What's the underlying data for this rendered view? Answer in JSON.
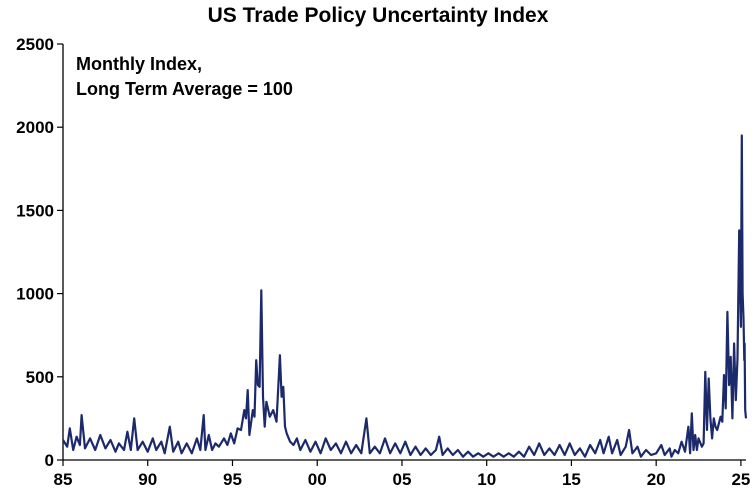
{
  "chart_data": {
    "type": "line",
    "title": "US Trade Policy Uncertainty Index",
    "annotation_lines": [
      "Monthly Index,",
      "Long Term Average = 100"
    ],
    "xlabel": "",
    "ylabel": "",
    "xlim": [
      1985,
      2025.3
    ],
    "ylim": [
      0,
      2500
    ],
    "grid": false,
    "legend": "none",
    "line_color": "#1c2a6b",
    "x_ticks": [
      {
        "value": 1985,
        "label": "85"
      },
      {
        "value": 1990,
        "label": "90"
      },
      {
        "value": 1995,
        "label": "95"
      },
      {
        "value": 2000,
        "label": "00"
      },
      {
        "value": 2005,
        "label": "05"
      },
      {
        "value": 2010,
        "label": "10"
      },
      {
        "value": 2015,
        "label": "15"
      },
      {
        "value": 2020,
        "label": "20"
      },
      {
        "value": 2025,
        "label": "25"
      }
    ],
    "y_ticks": [
      {
        "value": 0,
        "label": "0"
      },
      {
        "value": 500,
        "label": "500"
      },
      {
        "value": 1000,
        "label": "1000"
      },
      {
        "value": 1500,
        "label": "1500"
      },
      {
        "value": 2000,
        "label": "2000"
      },
      {
        "value": 2500,
        "label": "2500"
      }
    ],
    "series": [
      {
        "name": "US Trade Policy Uncertainty Index",
        "points": [
          [
            1985.0,
            120
          ],
          [
            1985.25,
            80
          ],
          [
            1985.4,
            190
          ],
          [
            1985.6,
            60
          ],
          [
            1985.8,
            140
          ],
          [
            1986.0,
            90
          ],
          [
            1986.1,
            270
          ],
          [
            1986.3,
            70
          ],
          [
            1986.6,
            130
          ],
          [
            1986.9,
            60
          ],
          [
            1987.2,
            150
          ],
          [
            1987.5,
            70
          ],
          [
            1987.8,
            120
          ],
          [
            1988.1,
            50
          ],
          [
            1988.3,
            100
          ],
          [
            1988.6,
            60
          ],
          [
            1988.8,
            170
          ],
          [
            1989.0,
            60
          ],
          [
            1989.2,
            250
          ],
          [
            1989.4,
            60
          ],
          [
            1989.7,
            110
          ],
          [
            1990.0,
            50
          ],
          [
            1990.3,
            130
          ],
          [
            1990.5,
            60
          ],
          [
            1990.8,
            110
          ],
          [
            1991.0,
            40
          ],
          [
            1991.3,
            200
          ],
          [
            1991.5,
            50
          ],
          [
            1991.8,
            110
          ],
          [
            1992.0,
            40
          ],
          [
            1992.3,
            100
          ],
          [
            1992.6,
            40
          ],
          [
            1992.9,
            130
          ],
          [
            1993.1,
            60
          ],
          [
            1993.3,
            270
          ],
          [
            1993.4,
            60
          ],
          [
            1993.6,
            150
          ],
          [
            1993.8,
            60
          ],
          [
            1994.0,
            100
          ],
          [
            1994.2,
            80
          ],
          [
            1994.5,
            130
          ],
          [
            1994.7,
            90
          ],
          [
            1994.9,
            160
          ],
          [
            1995.1,
            100
          ],
          [
            1995.3,
            190
          ],
          [
            1995.5,
            180
          ],
          [
            1995.7,
            300
          ],
          [
            1995.8,
            250
          ],
          [
            1995.9,
            420
          ],
          [
            1996.0,
            150
          ],
          [
            1996.2,
            300
          ],
          [
            1996.3,
            260
          ],
          [
            1996.4,
            600
          ],
          [
            1996.5,
            450
          ],
          [
            1996.6,
            440
          ],
          [
            1996.7,
            1020
          ],
          [
            1996.8,
            380
          ],
          [
            1996.9,
            200
          ],
          [
            1997.0,
            350
          ],
          [
            1997.2,
            260
          ],
          [
            1997.4,
            300
          ],
          [
            1997.6,
            230
          ],
          [
            1997.8,
            630
          ],
          [
            1997.9,
            380
          ],
          [
            1998.0,
            440
          ],
          [
            1998.1,
            200
          ],
          [
            1998.2,
            160
          ],
          [
            1998.4,
            110
          ],
          [
            1998.6,
            90
          ],
          [
            1998.8,
            130
          ],
          [
            1999.0,
            60
          ],
          [
            1999.3,
            120
          ],
          [
            1999.6,
            50
          ],
          [
            1999.9,
            110
          ],
          [
            2000.2,
            40
          ],
          [
            2000.5,
            130
          ],
          [
            2000.8,
            60
          ],
          [
            2001.1,
            100
          ],
          [
            2001.4,
            40
          ],
          [
            2001.7,
            110
          ],
          [
            2002.0,
            40
          ],
          [
            2002.3,
            90
          ],
          [
            2002.6,
            40
          ],
          [
            2002.9,
            250
          ],
          [
            2003.1,
            40
          ],
          [
            2003.4,
            80
          ],
          [
            2003.7,
            40
          ],
          [
            2004.0,
            130
          ],
          [
            2004.3,
            40
          ],
          [
            2004.6,
            100
          ],
          [
            2004.9,
            40
          ],
          [
            2005.2,
            110
          ],
          [
            2005.5,
            30
          ],
          [
            2005.8,
            80
          ],
          [
            2006.1,
            30
          ],
          [
            2006.4,
            70
          ],
          [
            2006.7,
            30
          ],
          [
            2007.0,
            60
          ],
          [
            2007.2,
            140
          ],
          [
            2007.4,
            30
          ],
          [
            2007.7,
            70
          ],
          [
            2008.0,
            30
          ],
          [
            2008.3,
            60
          ],
          [
            2008.6,
            20
          ],
          [
            2008.9,
            50
          ],
          [
            2009.2,
            20
          ],
          [
            2009.5,
            40
          ],
          [
            2009.8,
            20
          ],
          [
            2010.1,
            40
          ],
          [
            2010.4,
            20
          ],
          [
            2010.7,
            40
          ],
          [
            2011.0,
            20
          ],
          [
            2011.3,
            40
          ],
          [
            2011.6,
            20
          ],
          [
            2011.9,
            50
          ],
          [
            2012.2,
            20
          ],
          [
            2012.5,
            80
          ],
          [
            2012.8,
            30
          ],
          [
            2013.1,
            100
          ],
          [
            2013.4,
            30
          ],
          [
            2013.7,
            70
          ],
          [
            2014.0,
            30
          ],
          [
            2014.3,
            90
          ],
          [
            2014.6,
            30
          ],
          [
            2014.9,
            100
          ],
          [
            2015.2,
            30
          ],
          [
            2015.5,
            70
          ],
          [
            2015.8,
            20
          ],
          [
            2016.1,
            90
          ],
          [
            2016.4,
            40
          ],
          [
            2016.7,
            120
          ],
          [
            2016.9,
            40
          ],
          [
            2017.2,
            140
          ],
          [
            2017.4,
            40
          ],
          [
            2017.7,
            120
          ],
          [
            2017.9,
            30
          ],
          [
            2018.2,
            80
          ],
          [
            2018.4,
            180
          ],
          [
            2018.6,
            40
          ],
          [
            2018.9,
            80
          ],
          [
            2019.1,
            20
          ],
          [
            2019.4,
            60
          ],
          [
            2019.7,
            30
          ],
          [
            2020.0,
            40
          ],
          [
            2020.3,
            90
          ],
          [
            2020.5,
            30
          ],
          [
            2020.8,
            70
          ],
          [
            2020.9,
            20
          ],
          [
            2021.1,
            60
          ],
          [
            2021.3,
            40
          ],
          [
            2021.5,
            110
          ],
          [
            2021.7,
            50
          ],
          [
            2021.9,
            200
          ],
          [
            2022.0,
            40
          ],
          [
            2022.1,
            280
          ],
          [
            2022.2,
            60
          ],
          [
            2022.3,
            150
          ],
          [
            2022.4,
            60
          ],
          [
            2022.5,
            130
          ],
          [
            2022.7,
            80
          ],
          [
            2022.8,
            100
          ],
          [
            2022.9,
            530
          ],
          [
            2023.0,
            180
          ],
          [
            2023.1,
            490
          ],
          [
            2023.2,
            250
          ],
          [
            2023.3,
            130
          ],
          [
            2023.4,
            250
          ],
          [
            2023.5,
            200
          ],
          [
            2023.6,
            180
          ],
          [
            2023.8,
            260
          ],
          [
            2023.9,
            230
          ],
          [
            2024.0,
            510
          ],
          [
            2024.1,
            310
          ],
          [
            2024.2,
            890
          ],
          [
            2024.3,
            450
          ],
          [
            2024.4,
            620
          ],
          [
            2024.5,
            250
          ],
          [
            2024.6,
            700
          ],
          [
            2024.7,
            360
          ],
          [
            2024.8,
            610
          ],
          [
            2024.9,
            1380
          ],
          [
            2025.0,
            800
          ],
          [
            2025.05,
            1950
          ],
          [
            2025.1,
            1000
          ],
          [
            2025.15,
            850
          ],
          [
            2025.2,
            600
          ],
          [
            2025.22,
            700
          ],
          [
            2025.25,
            300
          ],
          [
            2025.3,
            250
          ]
        ]
      }
    ]
  }
}
